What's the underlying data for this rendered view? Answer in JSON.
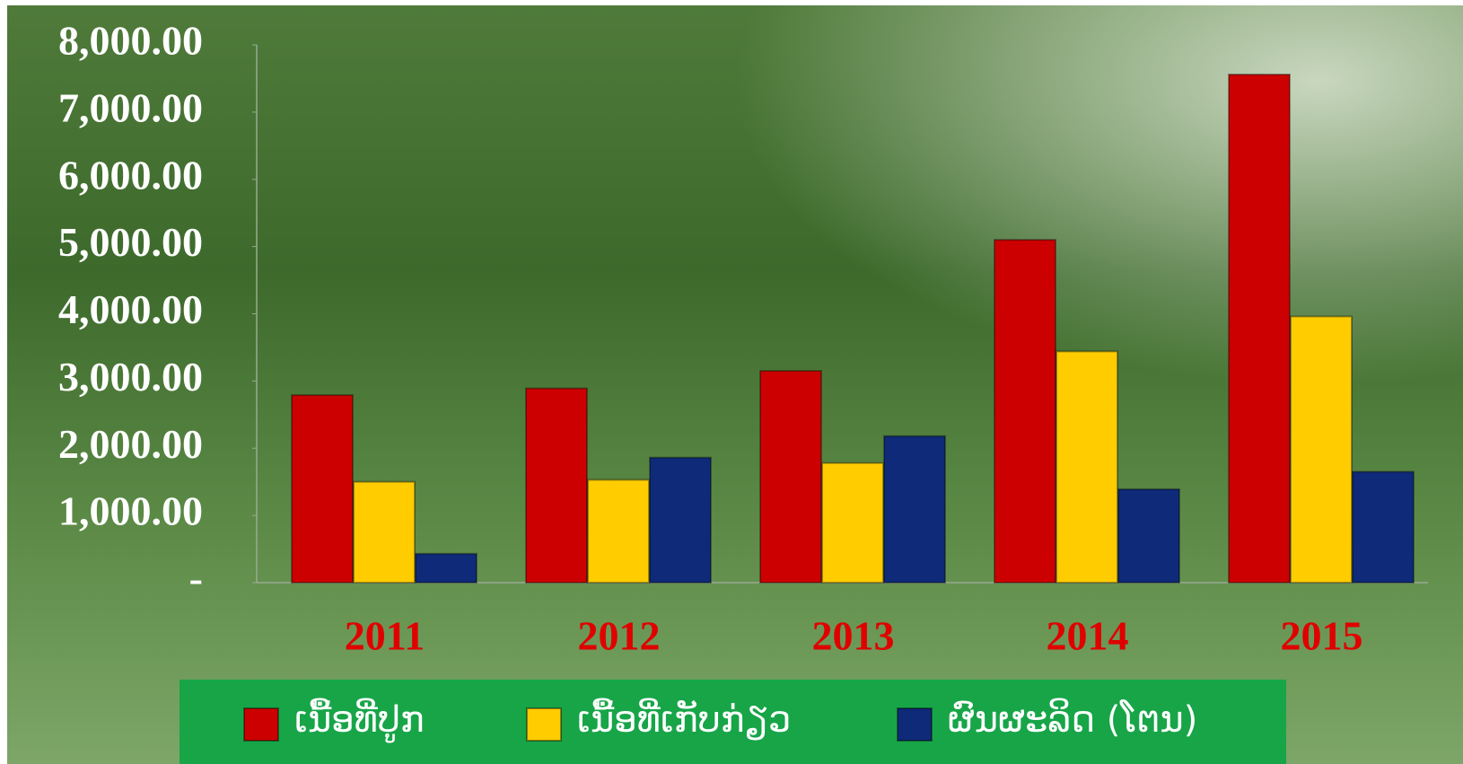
{
  "chart_data": {
    "type": "bar",
    "categories": [
      "2011",
      "2012",
      "2013",
      "2014",
      "2015"
    ],
    "series": [
      {
        "name": "ເນື້ອທີ່ປູກ",
        "color": "#cc0000",
        "values": [
          2790,
          2890,
          3150,
          5100,
          7560
        ]
      },
      {
        "name": "ເນື້ອທີ່ເກັບກ່ຽວ",
        "color": "#ffcc00",
        "values": [
          1500,
          1530,
          1780,
          3440,
          3960
        ]
      },
      {
        "name": "ຜົນຜະລິດ (ໂຕນ)",
        "color": "#0f2a78",
        "values": [
          430,
          1860,
          2180,
          1390,
          1650
        ]
      }
    ],
    "ylim": [
      0,
      8000
    ],
    "yticks": [
      {
        "value": 0,
        "label": "-"
      },
      {
        "value": 1000,
        "label": "1,000.00"
      },
      {
        "value": 2000,
        "label": "2,000.00"
      },
      {
        "value": 3000,
        "label": "3,000.00"
      },
      {
        "value": 4000,
        "label": "4,000.00"
      },
      {
        "value": 5000,
        "label": "5,000.00"
      },
      {
        "value": 6000,
        "label": "6,000.00"
      },
      {
        "value": 7000,
        "label": "7,000.00"
      },
      {
        "value": 8000,
        "label": "8,000.00"
      }
    ],
    "legend": "bottom"
  }
}
